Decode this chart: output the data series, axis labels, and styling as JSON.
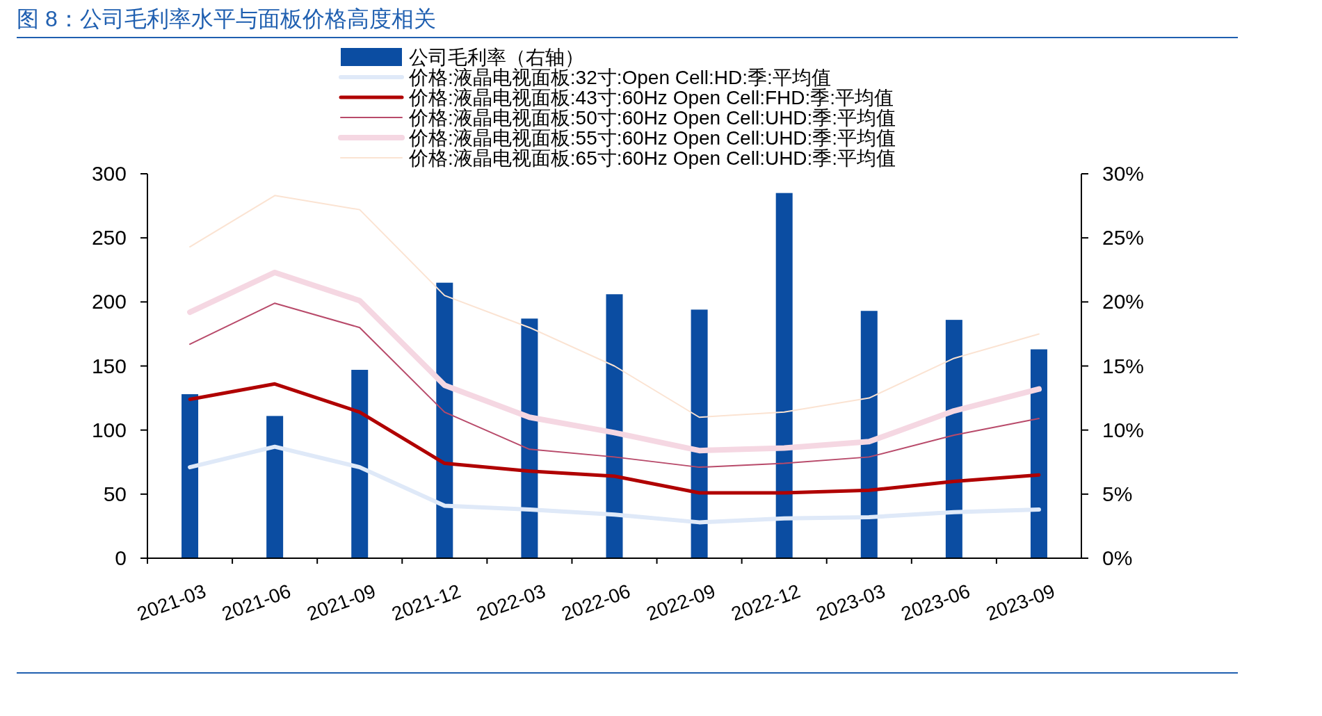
{
  "chart_data": {
    "type": "line",
    "title": "图 8：公司毛利率水平与面板价格高度相关",
    "categories": [
      "2021-03",
      "2021-06",
      "2021-09",
      "2021-12",
      "2022-03",
      "2022-06",
      "2022-09",
      "2022-12",
      "2023-03",
      "2023-06",
      "2023-09"
    ],
    "series": [
      {
        "name": "公司毛利率（右轴）",
        "type": "bar",
        "axis": "y2",
        "color": "#0b4da2",
        "values": [
          12.8,
          11.1,
          14.7,
          21.5,
          18.7,
          20.6,
          19.4,
          28.5,
          19.3,
          18.6,
          16.3
        ]
      },
      {
        "name": "价格:液晶电视面板:32寸:Open Cell:HD:季:平均值",
        "color": "#dfe9f8",
        "values": [
          71,
          87,
          71,
          41,
          38,
          34,
          28,
          31,
          32,
          36,
          38
        ]
      },
      {
        "name": "价格:液晶电视面板:43寸:60Hz Open Cell:FHD:季:平均值",
        "color": "#b00000",
        "values": [
          124,
          136,
          114,
          74,
          68,
          64,
          51,
          51,
          53,
          60,
          65
        ]
      },
      {
        "name": "价格:液晶电视面板:50寸:60Hz Open Cell:UHD:季:平均值",
        "color": "#b84a6a",
        "values": [
          167,
          199,
          180,
          114,
          85,
          79,
          71,
          74,
          79,
          96,
          109
        ]
      },
      {
        "name": "价格:液晶电视面板:55寸:60Hz Open Cell:UHD:季:平均值",
        "color": "#f5d7e2",
        "values": [
          192,
          223,
          201,
          135,
          110,
          98,
          84,
          86,
          91,
          115,
          132
        ]
      },
      {
        "name": "价格:液晶电视面板:65寸:60Hz Open Cell:UHD:季:平均值",
        "color": "#fbe3d2",
        "values": [
          243,
          283,
          272,
          205,
          180,
          150,
          110,
          114,
          125,
          156,
          175
        ]
      }
    ],
    "ylim": [
      0,
      300
    ],
    "yticks": [
      0,
      50,
      100,
      150,
      200,
      250,
      300
    ],
    "y2lim": [
      0,
      30
    ],
    "y2ticks": [
      {
        "value": 0,
        "label": "0%"
      },
      {
        "value": 5,
        "label": "5%"
      },
      {
        "value": 10,
        "label": "10%"
      },
      {
        "value": 15,
        "label": "15%"
      },
      {
        "value": 20,
        "label": "20%"
      },
      {
        "value": 25,
        "label": "25%"
      },
      {
        "value": 30,
        "label": "30%"
      }
    ],
    "legend": "top",
    "grid": false
  }
}
